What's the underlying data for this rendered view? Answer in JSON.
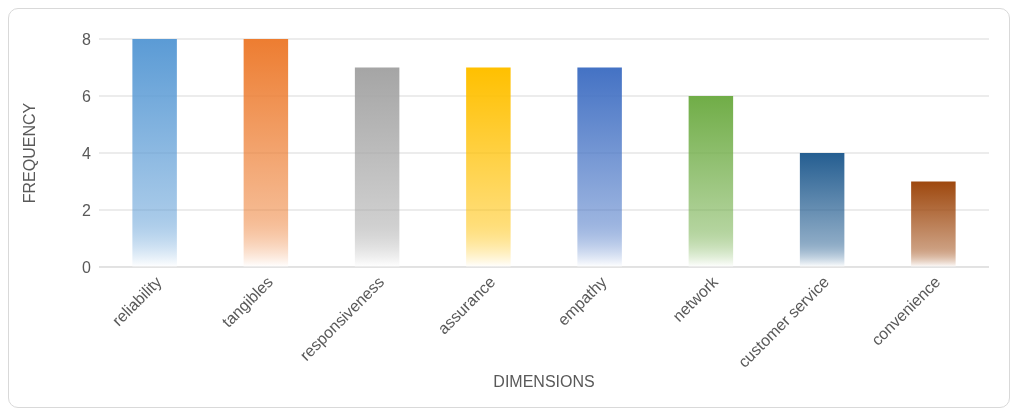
{
  "chart_data": {
    "type": "bar",
    "xlabel": "DIMENSIONS",
    "ylabel": "FREQUENCY",
    "categories": [
      "reliability",
      "tangibles",
      "responsiveness",
      "assurance",
      "empathy",
      "network",
      "customer service",
      "convenience"
    ],
    "values": [
      8,
      8,
      7,
      7,
      7,
      6,
      4,
      3
    ],
    "colors": [
      "#5b9bd5",
      "#ed7d31",
      "#a5a5a5",
      "#ffc000",
      "#4472c4",
      "#70ad47",
      "#255e91",
      "#9e480e"
    ],
    "ylim": [
      0,
      8
    ],
    "yticks": [
      0,
      2,
      4,
      6,
      8
    ],
    "grid": "y"
  }
}
